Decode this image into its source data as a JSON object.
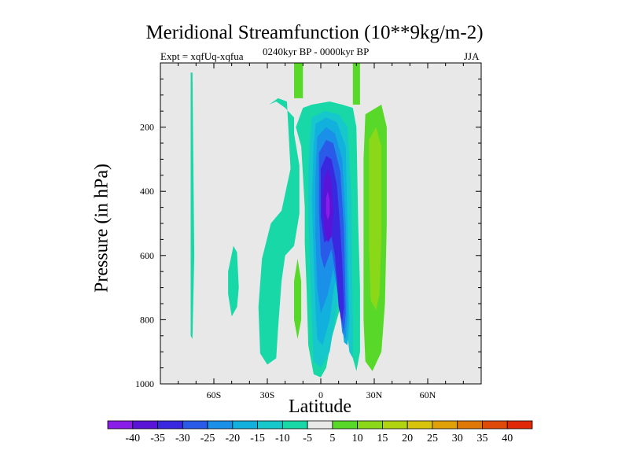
{
  "chart_data": {
    "type": "heatmap",
    "title": "Meridional Streamfunction (10**9kg/m-2)",
    "left_subtitle": "Expt = xqfUq-xqfua",
    "center_subtitle": "0240kyr BP - 0000kyr BP",
    "right_subtitle": "JJA",
    "xlabel": "Latitude",
    "ylabel": "Pressure (in hPa)",
    "xlim": [
      -90,
      90
    ],
    "ylim": [
      1000,
      0
    ],
    "x_ticks": [
      {
        "value": -60,
        "label": "60S"
      },
      {
        "value": -30,
        "label": "30S"
      },
      {
        "value": 0,
        "label": "0"
      },
      {
        "value": 30,
        "label": "30N"
      },
      {
        "value": 60,
        "label": "60N"
      }
    ],
    "y_ticks": [
      {
        "value": 200,
        "label": "200"
      },
      {
        "value": 400,
        "label": "400"
      },
      {
        "value": 600,
        "label": "600"
      },
      {
        "value": 800,
        "label": "800"
      },
      {
        "value": 1000,
        "label": "1000"
      }
    ],
    "background_color": "#e8e8e8",
    "colorbar": {
      "labels": [
        "-40",
        "-35",
        "-30",
        "-25",
        "-20",
        "-15",
        "-10",
        "-5",
        "5",
        "10",
        "15",
        "20",
        "25",
        "30",
        "35",
        "40"
      ],
      "colors": [
        "#8a1ee8",
        "#5a14d8",
        "#3a28e0",
        "#2a5ae8",
        "#1a90e8",
        "#12b0dc",
        "#16c8cc",
        "#18d8a8",
        "#e8e8e8",
        "#58d828",
        "#8ad818",
        "#b0d410",
        "#d8c40a",
        "#e0a008",
        "#e07808",
        "#e04a08",
        "#e02808"
      ]
    },
    "contours": [
      {
        "level": -5,
        "color": "#18d8a8",
        "polys": [
          [
            [
              -73,
              30
            ],
            [
              -72,
              30
            ],
            [
              -71,
              600
            ],
            [
              -72,
              860
            ],
            [
              -73,
              850
            ]
          ],
          [
            [
              -52,
              650
            ],
            [
              -49,
              570
            ],
            [
              -47,
              590
            ],
            [
              -46,
              700
            ],
            [
              -47,
              760
            ],
            [
              -50,
              790
            ],
            [
              -52,
              720
            ]
          ],
          [
            [
              -29,
              130
            ],
            [
              -24,
              110
            ],
            [
              -19,
              120
            ],
            [
              -17,
              330
            ],
            [
              -22,
              460
            ],
            [
              -28,
              500
            ],
            [
              -33,
              610
            ],
            [
              -35,
              760
            ],
            [
              -34,
              905
            ],
            [
              -30,
              940
            ],
            [
              -25,
              920
            ],
            [
              -24,
              830
            ],
            [
              -22,
              680
            ],
            [
              -20,
              600
            ],
            [
              -15,
              570
            ],
            [
              -12,
              470
            ],
            [
              -12,
              320
            ],
            [
              -15,
              220
            ],
            [
              -15,
              170
            ],
            [
              -20,
              140
            ],
            [
              -25,
              120
            ]
          ],
          [
            [
              -14,
              200
            ],
            [
              -10,
              140
            ],
            [
              -5,
              130
            ],
            [
              5,
              120
            ],
            [
              12,
              130
            ],
            [
              18,
              140
            ],
            [
              20,
              200
            ],
            [
              21,
              500
            ],
            [
              22,
              700
            ],
            [
              22,
              900
            ],
            [
              20,
              960
            ],
            [
              18,
              920
            ],
            [
              16,
              800
            ],
            [
              14,
              720
            ],
            [
              10,
              780
            ],
            [
              6,
              860
            ],
            [
              3,
              950
            ],
            [
              0,
              980
            ],
            [
              -4,
              970
            ],
            [
              -7,
              880
            ],
            [
              -8,
              700
            ],
            [
              -9,
              560
            ],
            [
              -9,
              450
            ],
            [
              -10,
              350
            ],
            [
              -11,
              260
            ]
          ]
        ]
      },
      {
        "level": 5,
        "color": "#58d828",
        "polys": [
          [
            [
              -15,
              0
            ],
            [
              -10,
              0
            ],
            [
              -10,
              110
            ],
            [
              -15,
              110
            ]
          ],
          [
            [
              18,
              0
            ],
            [
              22,
              0
            ],
            [
              22,
              130
            ],
            [
              18,
              130
            ]
          ],
          [
            [
              -15,
              680
            ],
            [
              -13,
              610
            ],
            [
              -11,
              680
            ],
            [
              -11,
              800
            ],
            [
              -13,
              860
            ],
            [
              -15,
              800
            ]
          ],
          [
            [
              25,
              160
            ],
            [
              34,
              130
            ],
            [
              37,
              200
            ],
            [
              37,
              500
            ],
            [
              36,
              750
            ],
            [
              34,
              900
            ],
            [
              29,
              960
            ],
            [
              25,
              930
            ],
            [
              24,
              800
            ],
            [
              24,
              500
            ],
            [
              24,
              300
            ]
          ]
        ]
      },
      {
        "level": 10,
        "color": "#8ad818",
        "polys": [
          [
            [
              27,
              240
            ],
            [
              31,
              200
            ],
            [
              34,
              260
            ],
            [
              34,
              540
            ],
            [
              33,
              720
            ],
            [
              31,
              770
            ],
            [
              28,
              740
            ],
            [
              27,
              560
            ]
          ]
        ]
      },
      {
        "level": -10,
        "color": "#16c8cc",
        "polys": [
          [
            [
              -5,
              170
            ],
            [
              2,
              150
            ],
            [
              10,
              160
            ],
            [
              15,
              200
            ],
            [
              17,
              400
            ],
            [
              18,
              800
            ],
            [
              18,
              920
            ],
            [
              16,
              900
            ],
            [
              14,
              800
            ],
            [
              12,
              700
            ],
            [
              9,
              760
            ],
            [
              5,
              900
            ],
            [
              0,
              950
            ],
            [
              -4,
              930
            ],
            [
              -5,
              800
            ],
            [
              -6,
              640
            ],
            [
              -7,
              480
            ],
            [
              -7,
              330
            ],
            [
              -6,
              230
            ]
          ]
        ]
      },
      {
        "level": -15,
        "color": "#12b0dc",
        "polys": [
          [
            [
              -3,
              190
            ],
            [
              3,
              170
            ],
            [
              9,
              185
            ],
            [
              14,
              260
            ],
            [
              15,
              500
            ],
            [
              16,
              800
            ],
            [
              15,
              880
            ],
            [
              13,
              870
            ],
            [
              11,
              760
            ],
            [
              8,
              680
            ],
            [
              5,
              800
            ],
            [
              1,
              880
            ],
            [
              -2,
              860
            ],
            [
              -3,
              760
            ],
            [
              -4,
              600
            ],
            [
              -5,
              420
            ],
            [
              -4,
              260
            ]
          ]
        ]
      },
      {
        "level": -20,
        "color": "#1a90e8",
        "polys": [
          [
            [
              -2,
              230
            ],
            [
              3,
              200
            ],
            [
              8,
              220
            ],
            [
              12,
              300
            ],
            [
              14,
              500
            ],
            [
              15,
              780
            ],
            [
              14,
              860
            ],
            [
              12,
              840
            ],
            [
              10,
              730
            ],
            [
              7,
              640
            ],
            [
              4,
              720
            ],
            [
              0,
              780
            ],
            [
              -2,
              700
            ],
            [
              -3,
              540
            ],
            [
              -3,
              360
            ]
          ]
        ]
      },
      {
        "level": -25,
        "color": "#2a5ae8",
        "polys": [
          [
            [
              -1,
              280
            ],
            [
              3,
              240
            ],
            [
              7,
              250
            ],
            [
              11,
              340
            ],
            [
              13,
              520
            ],
            [
              14,
              780
            ],
            [
              13,
              840
            ],
            [
              11,
              790
            ],
            [
              9,
              680
            ],
            [
              6,
              580
            ],
            [
              2,
              640
            ],
            [
              0,
              600
            ],
            [
              -1,
              460
            ]
          ]
        ]
      },
      {
        "level": -30,
        "color": "#3a28e0",
        "polys": [
          [
            [
              0,
              330
            ],
            [
              3,
              290
            ],
            [
              6,
              300
            ],
            [
              9,
              380
            ],
            [
              11,
              520
            ],
            [
              12,
              620
            ],
            [
              13,
              760
            ],
            [
              12,
              810
            ],
            [
              10,
              760
            ],
            [
              8,
              600
            ],
            [
              6,
              540
            ],
            [
              2,
              560
            ],
            [
              0,
              480
            ]
          ]
        ]
      },
      {
        "level": -35,
        "color": "#5a14d8",
        "polys": [
          [
            [
              2,
              360
            ],
            [
              4,
              330
            ],
            [
              6,
              370
            ],
            [
              7,
              460
            ],
            [
              6,
              540
            ],
            [
              4,
              560
            ],
            [
              2,
              520
            ],
            [
              1,
              440
            ]
          ]
        ]
      },
      {
        "level": -40,
        "color": "#8a1ee8",
        "polys": [
          [
            [
              3,
              420
            ],
            [
              4,
              400
            ],
            [
              5,
              430
            ],
            [
              5,
              470
            ],
            [
              4,
              490
            ],
            [
              3,
              470
            ]
          ]
        ]
      }
    ]
  }
}
